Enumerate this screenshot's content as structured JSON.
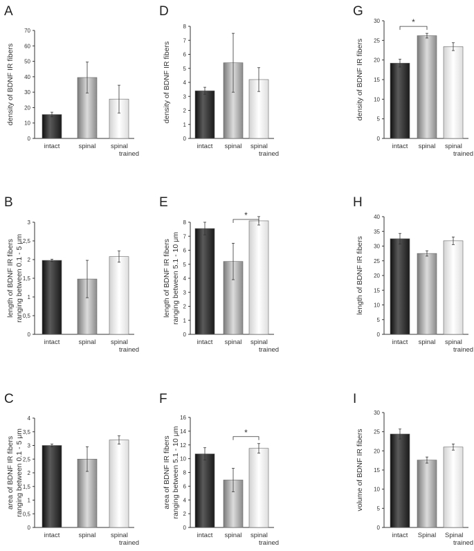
{
  "chart_data": [
    {
      "panel": "A",
      "type": "bar",
      "ylabel": [
        "density of BDNF IR fibers"
      ],
      "categories": [
        [
          "intact"
        ],
        [
          "spinal"
        ],
        [
          "spinal",
          "trained"
        ]
      ],
      "values": [
        15.5,
        39.5,
        25.5
      ],
      "errors": [
        1.5,
        10,
        9
      ],
      "ylim": [
        0,
        70
      ],
      "yticks": [
        "0",
        "10",
        "20",
        "30",
        "40",
        "50",
        "60",
        "70"
      ],
      "significance": []
    },
    {
      "panel": "D",
      "type": "bar",
      "ylabel": [
        "density of BDNF IR fibers"
      ],
      "categories": [
        [
          "intact"
        ],
        [
          "spinal"
        ],
        [
          "spinal",
          "trained"
        ]
      ],
      "values": [
        3.4,
        5.4,
        4.2
      ],
      "errors": [
        0.25,
        2.1,
        0.85
      ],
      "ylim": [
        0,
        8
      ],
      "yticks": [
        "0",
        "1",
        "2",
        "3",
        "4",
        "5",
        "6",
        "7",
        "8"
      ],
      "significance": []
    },
    {
      "panel": "G",
      "type": "bar",
      "ylabel": [
        "density of BDNF IR fibers"
      ],
      "categories": [
        [
          "intact"
        ],
        [
          "spinal"
        ],
        [
          "spinal",
          "trained"
        ]
      ],
      "values": [
        19.2,
        26.2,
        23.4
      ],
      "errors": [
        1.0,
        0.6,
        1.0
      ],
      "ylim": [
        0,
        30
      ],
      "yticks": [
        "0",
        "5",
        "10",
        "15",
        "20",
        "25",
        "30"
      ],
      "significance": [
        {
          "from": 0,
          "to": 1,
          "label": "*"
        }
      ]
    },
    {
      "panel": "B",
      "type": "bar",
      "ylabel": [
        "length of BDNF IR fibers",
        "ranging between 0.1 - 5 μm"
      ],
      "categories": [
        [
          "intact"
        ],
        [
          "spinal"
        ],
        [
          "spinal",
          "trained"
        ]
      ],
      "values": [
        1.98,
        1.48,
        2.08
      ],
      "errors": [
        0.03,
        0.5,
        0.15
      ],
      "ylim": [
        0,
        3
      ],
      "yticks": [
        "0",
        "0,5",
        "1",
        "1,5",
        "2",
        "2,5",
        "3"
      ],
      "significance": []
    },
    {
      "panel": "E",
      "type": "bar",
      "ylabel": [
        "length of BDNF IR fibers",
        "ranging between 5.1 - 10 μm"
      ],
      "categories": [
        [
          "intact"
        ],
        [
          "spinal"
        ],
        [
          "spinal",
          "trained"
        ]
      ],
      "values": [
        7.55,
        5.2,
        8.1
      ],
      "errors": [
        0.45,
        1.3,
        0.3
      ],
      "ylim": [
        0,
        8
      ],
      "yticks": [
        "0",
        "1",
        "2",
        "3",
        "4",
        "5",
        "6",
        "7",
        "8"
      ],
      "significance": [
        {
          "from": 1,
          "to": 2,
          "label": "*"
        }
      ]
    },
    {
      "panel": "H",
      "type": "bar",
      "ylabel": [
        "length of BDNF IR fibers"
      ],
      "categories": [
        [
          "intact"
        ],
        [
          "spinal"
        ],
        [
          "spinal",
          "trained"
        ]
      ],
      "values": [
        32.5,
        27.5,
        31.8
      ],
      "errors": [
        1.8,
        0.9,
        1.3
      ],
      "ylim": [
        0,
        40
      ],
      "yticks": [
        "0",
        "5",
        "10",
        "15",
        "20",
        "25",
        "30",
        "35",
        "40"
      ],
      "significance": []
    },
    {
      "panel": "C",
      "type": "bar",
      "ylabel": [
        "area of BDNF IR fibers",
        "ranging between 0.1 - 5 μm"
      ],
      "categories": [
        [
          "intact"
        ],
        [
          "spinal"
        ],
        [
          "spinal",
          "trained"
        ]
      ],
      "values": [
        3.0,
        2.5,
        3.2
      ],
      "errors": [
        0.05,
        0.45,
        0.15
      ],
      "ylim": [
        0,
        4
      ],
      "yticks": [
        "0",
        "0,5",
        "1",
        "1,5",
        "2",
        "2,5",
        "3",
        "3,5",
        "4"
      ],
      "significance": []
    },
    {
      "panel": "F",
      "type": "bar",
      "ylabel": [
        "area of BDNF IR fibers",
        "ranging between 5.1 - 10 μm"
      ],
      "categories": [
        [
          "intact"
        ],
        [
          "spinal"
        ],
        [
          "spinal",
          "trained"
        ]
      ],
      "values": [
        10.7,
        6.9,
        11.5
      ],
      "errors": [
        0.9,
        1.7,
        0.7
      ],
      "ylim": [
        0,
        16
      ],
      "yticks": [
        "0",
        "2",
        "4",
        "6",
        "8",
        "10",
        "12",
        "14",
        "16"
      ],
      "significance": [
        {
          "from": 1,
          "to": 2,
          "label": "*"
        }
      ]
    },
    {
      "panel": "I",
      "type": "bar",
      "ylabel": [
        "volume of BDNF IR fibers"
      ],
      "categories": [
        [
          "intact"
        ],
        [
          "Spinal"
        ],
        [
          "Spinal",
          "trained"
        ]
      ],
      "values": [
        24.4,
        17.6,
        21.0
      ],
      "errors": [
        1.3,
        0.8,
        0.8
      ],
      "ylim": [
        0,
        30
      ],
      "yticks": [
        "0",
        "5",
        "10",
        "15",
        "20",
        "25",
        "30"
      ],
      "significance": []
    }
  ]
}
